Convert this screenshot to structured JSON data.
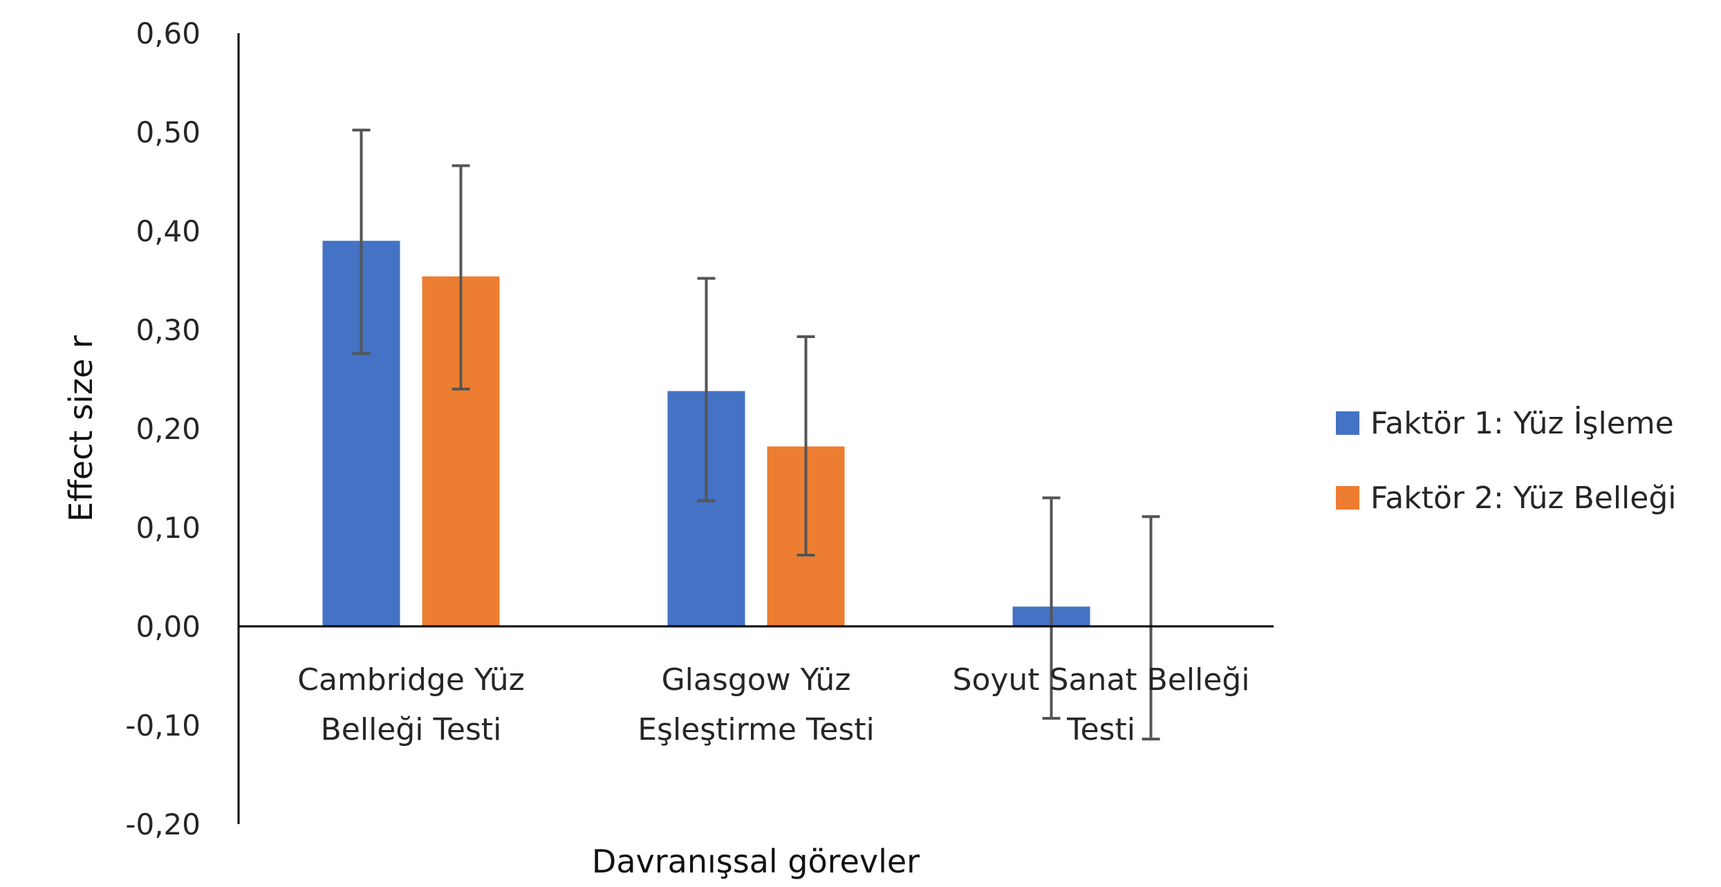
{
  "chart_data": {
    "type": "bar",
    "xlabel": "Davranışsal görevler",
    "ylabel": "Effect size r",
    "ylim": [
      -0.2,
      0.6
    ],
    "yticks": [
      -0.2,
      -0.1,
      0.0,
      0.1,
      0.2,
      0.3,
      0.4,
      0.5,
      0.6
    ],
    "ytick_labels": [
      "-0,20",
      "-0,10",
      "0,00",
      "0,10",
      "0,20",
      "0,30",
      "0,40",
      "0,50",
      "0,60"
    ],
    "grid": false,
    "legend_position": "right",
    "categories": [
      [
        "Cambridge Yüz",
        "Belleği Testi"
      ],
      [
        "Glasgow Yüz",
        "Eşleştirme Testi"
      ],
      [
        "Soyut Sanat Belleği",
        "Testi"
      ]
    ],
    "series": [
      {
        "name": "Faktör 1: Yüz İşleme",
        "color": "#4472C4",
        "values": [
          0.39,
          0.238,
          0.02
        ],
        "error_low": [
          0.276,
          0.127,
          -0.093
        ],
        "error_high": [
          0.502,
          0.352,
          0.13
        ]
      },
      {
        "name": "Faktör 2: Yüz Belleği",
        "color": "#ED7D31",
        "values": [
          0.354,
          0.182,
          0.0
        ],
        "error_low": [
          0.24,
          0.072,
          -0.114
        ],
        "error_high": [
          0.466,
          0.293,
          0.111
        ]
      }
    ]
  }
}
